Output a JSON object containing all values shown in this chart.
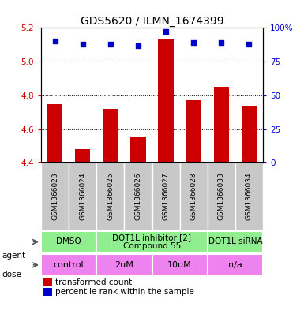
{
  "title": "GDS5620 / ILMN_1674399",
  "samples": [
    "GSM1366023",
    "GSM1366024",
    "GSM1366025",
    "GSM1366026",
    "GSM1366027",
    "GSM1366028",
    "GSM1366033",
    "GSM1366034"
  ],
  "bar_values": [
    4.75,
    4.48,
    4.72,
    4.55,
    5.13,
    4.77,
    4.85,
    4.74
  ],
  "dot_values": [
    90,
    88,
    88,
    87,
    97,
    89,
    89,
    88
  ],
  "ylim": [
    4.4,
    5.2
  ],
  "ylim_right": [
    0,
    100
  ],
  "yticks_left": [
    4.4,
    4.6,
    4.8,
    5.0,
    5.2
  ],
  "yticks_right": [
    0,
    25,
    50,
    75,
    100
  ],
  "bar_color": "#cc0000",
  "dot_color": "#0000cc",
  "agent_groups": [
    {
      "label": "DMSO",
      "cols": [
        0,
        1
      ],
      "color": "#90ee90"
    },
    {
      "label": "DOT1L inhibitor [2]\nCompound 55",
      "cols": [
        2,
        3,
        4,
        5
      ],
      "color": "#90ee90"
    },
    {
      "label": "DOT1L siRNA",
      "cols": [
        6,
        7
      ],
      "color": "#90ee90"
    }
  ],
  "dose_groups": [
    {
      "label": "control",
      "cols": [
        0,
        1
      ],
      "color": "#ee82ee"
    },
    {
      "label": "2uM",
      "cols": [
        2,
        3
      ],
      "color": "#ee82ee"
    },
    {
      "label": "10uM",
      "cols": [
        4,
        5
      ],
      "color": "#ee82ee"
    },
    {
      "label": "n/a",
      "cols": [
        6,
        7
      ],
      "color": "#ee82ee"
    }
  ],
  "agent_font_size": 7.5,
  "dose_font_size": 8,
  "sample_font_size": 6.5,
  "title_font_size": 10,
  "legend_font_size": 7.5,
  "sample_bg_color": "#c8c8c8",
  "grid_color": "black",
  "left_tick_color": "#cc0000",
  "right_tick_color": "#0000cc",
  "tick_fontsize": 7.5
}
